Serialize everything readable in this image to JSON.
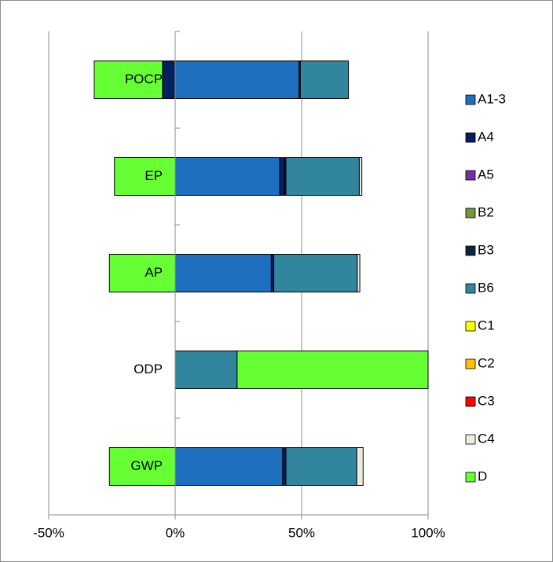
{
  "chart_data": {
    "type": "stacked-bar-horizontal",
    "categories": [
      "GWP",
      "ODP",
      "AP",
      "EP",
      "POCP"
    ],
    "series": [
      {
        "name": "A1-3",
        "color": "#1f6fbf",
        "values": [
          42.5,
          0,
          38,
          41.3,
          49
        ]
      },
      {
        "name": "A4",
        "color": "#002060",
        "values": [
          1.3,
          0,
          1,
          2,
          -5
        ]
      },
      {
        "name": "A5",
        "color": "#7030a0",
        "values": [
          0,
          0,
          0,
          0,
          0
        ]
      },
      {
        "name": "B2",
        "color": "#76923c",
        "values": [
          0,
          0,
          0,
          0,
          0
        ]
      },
      {
        "name": "B3",
        "color": "#0f243e",
        "values": [
          0,
          0,
          0,
          0.5,
          0.5
        ]
      },
      {
        "name": "B6",
        "color": "#31859c",
        "values": [
          28,
          24.5,
          33,
          29,
          19
        ]
      },
      {
        "name": "C1",
        "color": "#ffff00",
        "values": [
          0,
          0,
          0,
          0,
          0
        ]
      },
      {
        "name": "C2",
        "color": "#ffc000",
        "values": [
          0,
          0,
          0,
          0,
          0
        ]
      },
      {
        "name": "C3",
        "color": "#ff0000",
        "values": [
          0,
          0,
          0,
          0,
          0
        ]
      },
      {
        "name": "C4",
        "color": "#eeece1",
        "values": [
          2.5,
          0,
          1,
          1,
          0
        ]
      },
      {
        "name": "D",
        "color": "#66ff33",
        "values": [
          -26,
          75.5,
          -26,
          -24,
          -27
        ]
      }
    ],
    "xlim": [
      -50,
      100
    ],
    "xticks": [
      {
        "value": -50,
        "label": "-50%"
      },
      {
        "value": 0,
        "label": "0%"
      },
      {
        "value": 50,
        "label": "50%"
      },
      {
        "value": 100,
        "label": "100%"
      }
    ],
    "grid": true,
    "legend": "right"
  }
}
